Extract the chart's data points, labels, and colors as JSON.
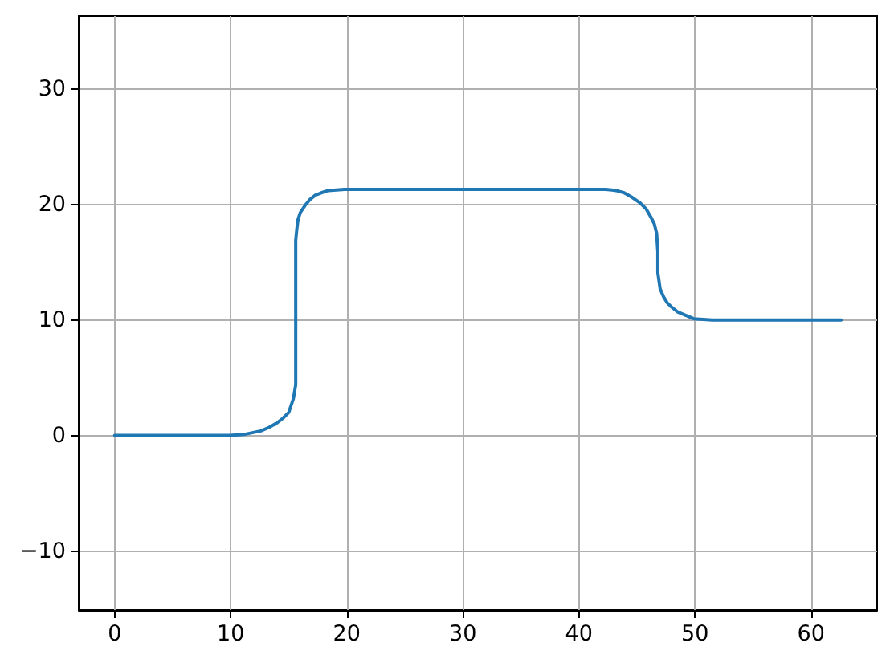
{
  "chart_data": {
    "type": "line",
    "x": [
      0,
      9.9,
      11.2,
      12.6,
      13.3,
      14.0,
      14.5,
      15.0,
      15.2,
      15.4,
      15.6,
      15.6,
      15.7,
      15.8,
      16.0,
      16.4,
      16.8,
      17.3,
      17.8,
      18.4,
      19.8,
      42.3,
      43.2,
      43.9,
      44.6,
      45.3,
      45.8,
      46.2,
      46.5,
      46.7,
      46.8,
      46.8,
      47.0,
      47.3,
      47.6,
      48.0,
      48.5,
      49.2,
      49.9,
      51.5,
      62.6
    ],
    "values": [
      0,
      0,
      0.1,
      0.4,
      0.7,
      1.1,
      1.5,
      2.0,
      2.6,
      3.2,
      4.4,
      16.9,
      17.9,
      18.7,
      19.3,
      19.9,
      20.4,
      20.8,
      21.0,
      21.2,
      21.3,
      21.3,
      21.2,
      21.0,
      20.6,
      20.1,
      19.6,
      18.9,
      18.3,
      17.5,
      15.9,
      14.1,
      12.7,
      12.0,
      11.5,
      11.1,
      10.7,
      10.4,
      10.1,
      10.0,
      10.0
    ],
    "color": "#1f77b4",
    "xlim": [
      -3.1,
      65.7
    ],
    "ylim": [
      -15.1,
      36.3
    ],
    "xticks": [
      0,
      10,
      20,
      30,
      40,
      50,
      60
    ],
    "yticks": [
      {
        "value": -10,
        "label": "−10"
      },
      0,
      10,
      20,
      30
    ],
    "grid": true,
    "marker": "none",
    "line_style": "solid"
  }
}
